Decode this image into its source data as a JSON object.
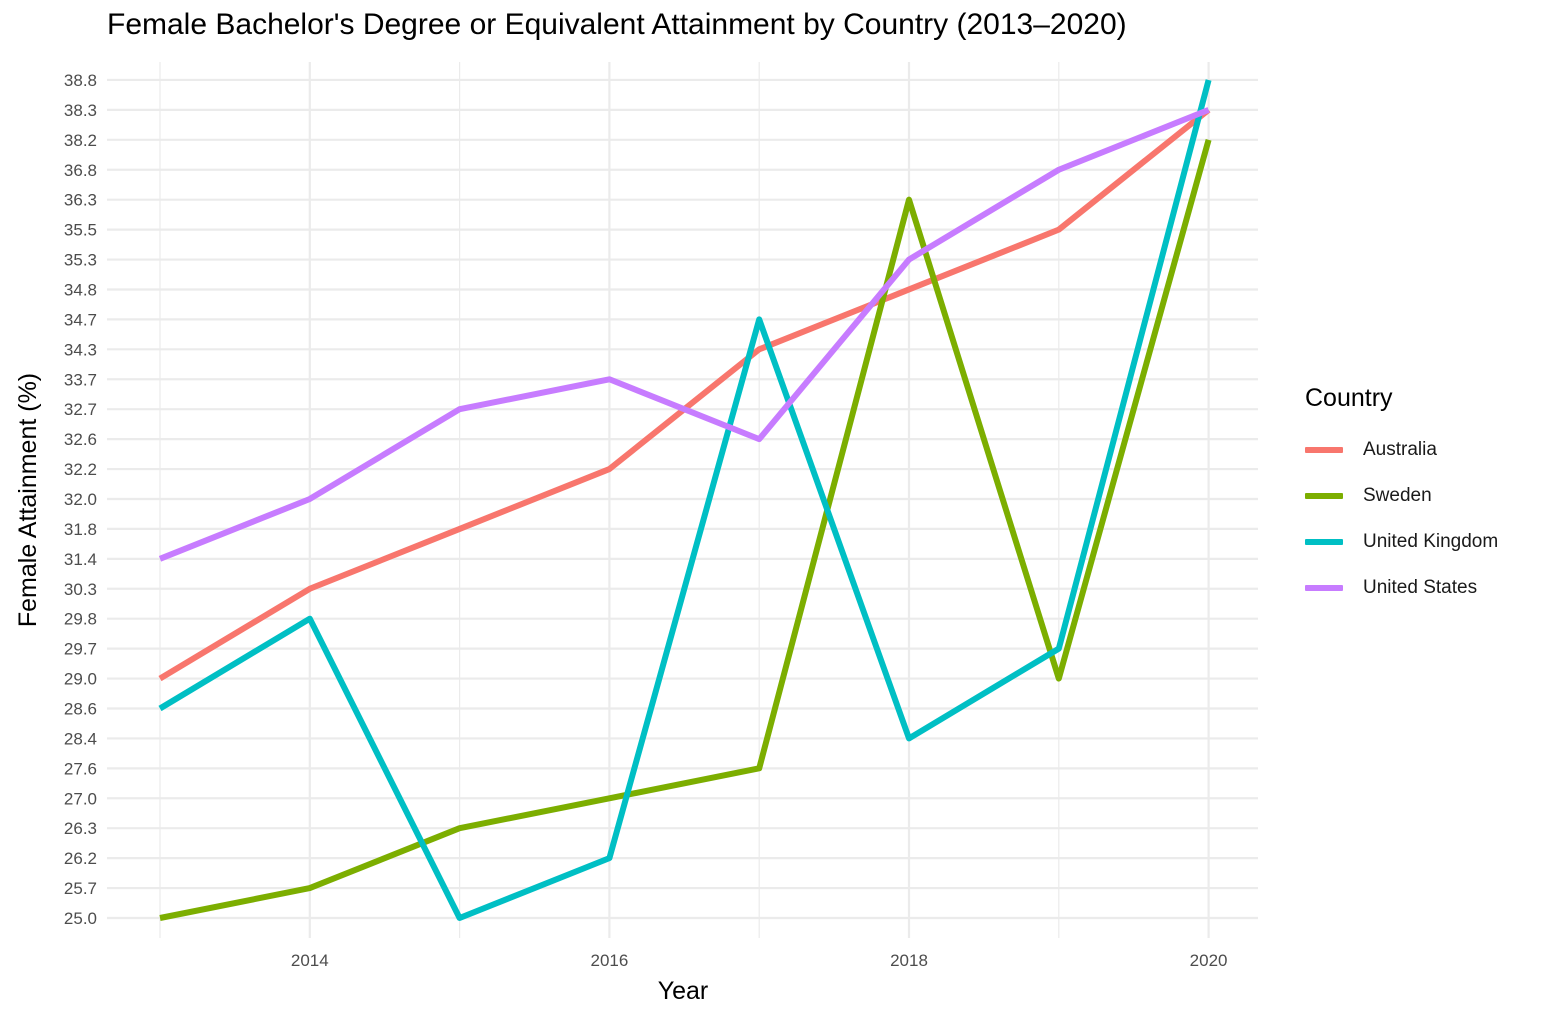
{
  "chart_data": {
    "type": "line",
    "title": "Female Bachelor's Degree or Equivalent Attainment by Country (2013–2020)",
    "xlabel": "Year",
    "ylabel": "Female Attainment (%)",
    "x": [
      2013,
      2014,
      2015,
      2016,
      2017,
      2018,
      2019,
      2020
    ],
    "x_tick_labels": [
      "2014",
      "2016",
      "2018",
      "2020"
    ],
    "y_tick_labels": [
      "25.0",
      "25.7",
      "26.2",
      "26.3",
      "27.0",
      "27.6",
      "28.4",
      "28.6",
      "29.0",
      "29.7",
      "29.8",
      "30.3",
      "31.4",
      "31.8",
      "32.0",
      "32.2",
      "32.6",
      "32.7",
      "33.7",
      "34.3",
      "34.7",
      "34.8",
      "35.3",
      "35.5",
      "36.3",
      "36.8",
      "38.2",
      "38.3",
      "38.8"
    ],
    "y_scale": "categorical",
    "grid": true,
    "legend_title": "Country",
    "legend_position": "right",
    "series": [
      {
        "name": "Australia",
        "color": "#F8766D",
        "values": [
          29.0,
          30.3,
          31.8,
          32.2,
          34.3,
          34.8,
          35.5,
          38.3
        ]
      },
      {
        "name": "Sweden",
        "color": "#7CAE00",
        "values": [
          25.0,
          25.7,
          26.3,
          27.0,
          27.6,
          36.3,
          29.0,
          38.2
        ]
      },
      {
        "name": "United Kingdom",
        "color": "#00BFC4",
        "values": [
          28.6,
          29.8,
          25.0,
          26.2,
          34.7,
          28.4,
          29.7,
          38.8
        ]
      },
      {
        "name": "United States",
        "color": "#C77CFF",
        "values": [
          31.4,
          32.0,
          32.7,
          33.7,
          32.6,
          35.3,
          36.8,
          38.3
        ]
      }
    ]
  }
}
